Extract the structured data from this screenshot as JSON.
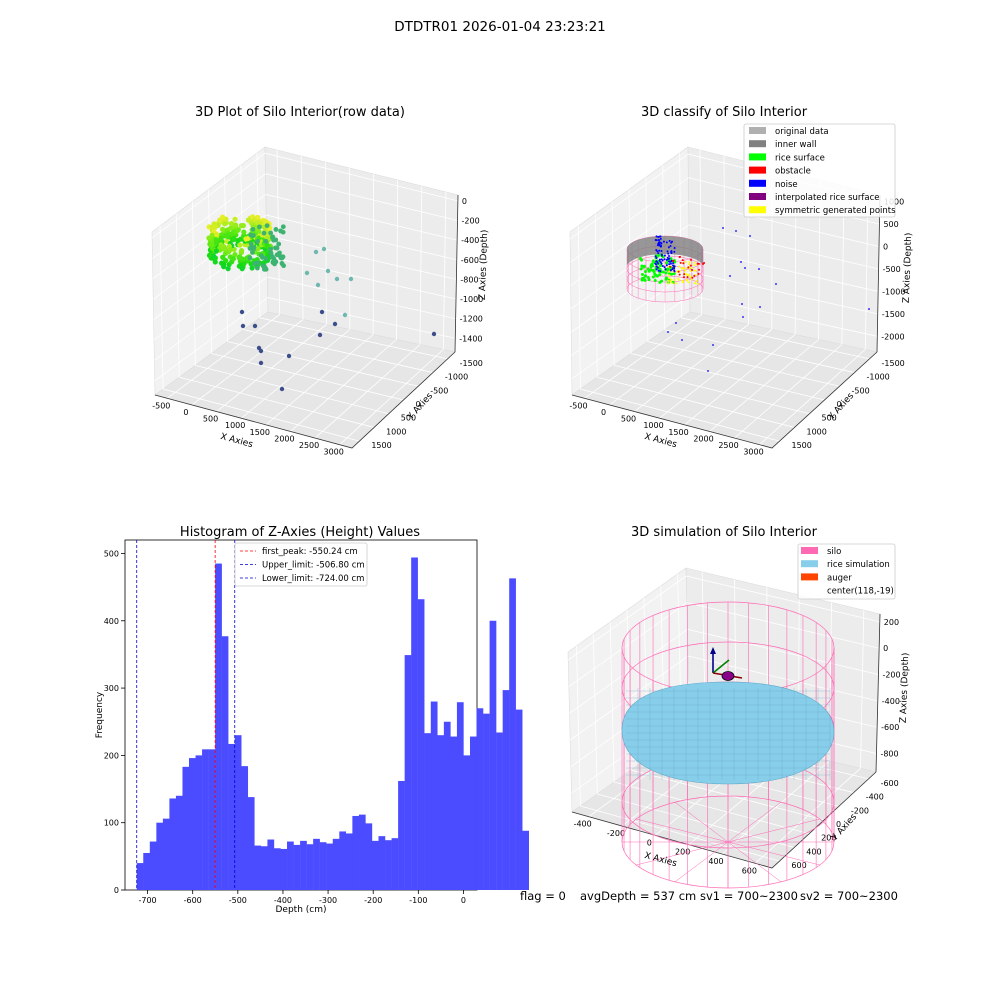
{
  "suptitle": "DTDTR01 2026-01-04 23:23:21",
  "footer": {
    "flag": "flag = 0",
    "avg_depth": "avgDepth = 537 cm",
    "sv1": "sv1 = 700~2300",
    "sv2": "sv2 = 700~2300"
  },
  "chart_data": [
    {
      "type": "scatter",
      "title": "3D Plot of Silo Interior(row data)",
      "xlabel": "X Axies",
      "ylabel": "Y Axies",
      "zlabel": "Z Axies (Depth)",
      "x_ticks": [
        "-500",
        "0",
        "500",
        "1000",
        "1500",
        "2000",
        "2500",
        "3000"
      ],
      "y_ticks": [
        "-1500",
        "-1000",
        "-500",
        "0",
        "500",
        "1000",
        "1500"
      ],
      "z_ticks": [
        "0",
        "-200",
        "-400",
        "-600",
        "-800",
        "-1000",
        "-1200",
        "-1400"
      ],
      "colormap": "viridis"
    },
    {
      "type": "scatter",
      "title": "3D classify of Silo Interior",
      "xlabel": "X Axies",
      "ylabel": "Y Axies",
      "zlabel": "Z Axies (Depth)",
      "x_ticks": [
        "-500",
        "0",
        "500",
        "1000",
        "1500",
        "2000",
        "2500",
        "3000"
      ],
      "y_ticks": [
        "-1500",
        "-1000",
        "-500",
        "0",
        "500",
        "1000",
        "1500"
      ],
      "z_ticks": [
        "1000",
        "500",
        "0",
        "-500",
        "-1000",
        "-1500",
        "-2000"
      ],
      "legend_position": "top-right",
      "legend": [
        {
          "name": "original data",
          "color": "#b0b0b0"
        },
        {
          "name": "inner wall",
          "color": "#808080"
        },
        {
          "name": "rice surface",
          "color": "#00ff00"
        },
        {
          "name": "obstacle",
          "color": "#ff0000"
        },
        {
          "name": "noise",
          "color": "#0000ff"
        },
        {
          "name": "interpolated rice surface",
          "color": "#800080"
        },
        {
          "name": "symmetric generated points",
          "color": "#ffff00"
        }
      ]
    },
    {
      "type": "bar",
      "title": "Histogram of Z-Axies (Height) Values",
      "xlabel": "Depth (cm)",
      "ylabel": "Frequency",
      "xlim": [
        -750,
        30
      ],
      "ylim": [
        0,
        520
      ],
      "x_ticks": [
        -700,
        -600,
        -500,
        -400,
        -300,
        -200,
        -100,
        0
      ],
      "y_ticks": [
        0,
        100,
        200,
        300,
        400,
        500
      ],
      "bar_color": "#4b4bff",
      "bin_start": -724,
      "bin_width": 14.48,
      "values": [
        40,
        55,
        72,
        100,
        106,
        136,
        140,
        183,
        196,
        200,
        209,
        209,
        485,
        377,
        217,
        230,
        184,
        138,
        66,
        65,
        75,
        62,
        61,
        72,
        67,
        73,
        68,
        76,
        71,
        69,
        76,
        87,
        84,
        110,
        112,
        99,
        73,
        80,
        74,
        77,
        162,
        349,
        494,
        432,
        233,
        280,
        230,
        250,
        228,
        279,
        200,
        228,
        270,
        262,
        400,
        234,
        297,
        463,
        268,
        88
      ],
      "lines": [
        {
          "label": "first_peak: -550.24 cm",
          "x": -550.24,
          "color": "#ff0000"
        },
        {
          "label": "Upper_limit: -506.80 cm",
          "x": -506.8,
          "color": "#0000cc"
        },
        {
          "label": "Lower_limit: -724.00 cm",
          "x": -724.0,
          "color": "#0000cc"
        }
      ],
      "legend_position": "top-center"
    },
    {
      "type": "scatter",
      "title": "3D simulation of Silo Interior",
      "xlabel": "X Axies",
      "ylabel": "Y Axies",
      "zlabel": "Z Axies (Depth)",
      "x_ticks": [
        "-400",
        "-200",
        "0",
        "200",
        "400",
        "600"
      ],
      "y_ticks": [
        "-600",
        "-400",
        "-200",
        "0",
        "200",
        "400",
        "600"
      ],
      "z_ticks": [
        "200",
        "0",
        "-200",
        "-400",
        "-600",
        "-800"
      ],
      "legend_position": "top-right",
      "legend": [
        {
          "name": "silo",
          "color": "#ff69b4"
        },
        {
          "name": "rice simulation",
          "color": "#87ceeb"
        },
        {
          "name": "auger",
          "color": "#ff4500"
        },
        {
          "name": "center(118,-19)",
          "color": "none"
        }
      ]
    }
  ]
}
